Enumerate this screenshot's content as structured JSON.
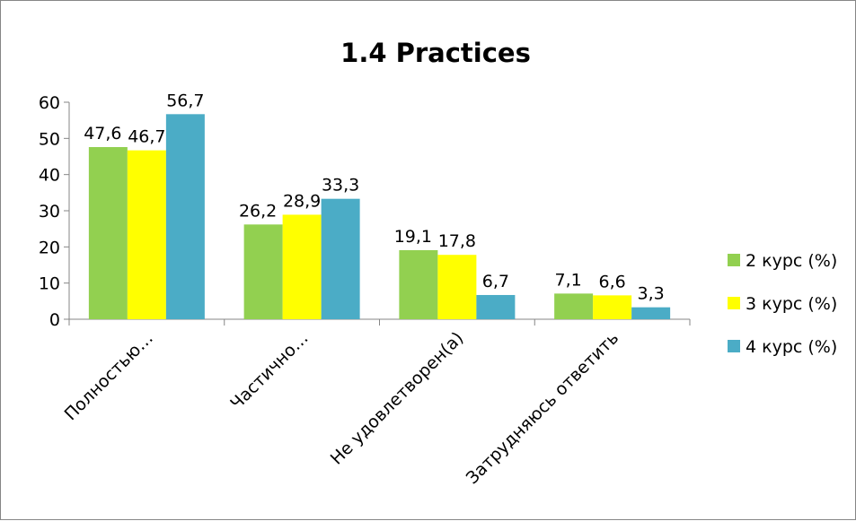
{
  "chart_data": {
    "type": "bar",
    "title": "1.4 Practices",
    "categories": [
      "Полностью…",
      "Частично…",
      "Не удовлетворен(а)",
      "Затрудняюсь ответить"
    ],
    "series": [
      {
        "name": "2 курс (%)",
        "values": [
          47.6,
          26.2,
          19.1,
          7.1
        ],
        "labels": [
          "47,6",
          "26,2",
          "19,1",
          "7,1"
        ],
        "color": "#92d050"
      },
      {
        "name": "3 курс (%)",
        "values": [
          46.7,
          28.9,
          17.8,
          6.6
        ],
        "labels": [
          "46,7",
          "28,9",
          "17,8",
          "6,6"
        ],
        "color": "#ffff00"
      },
      {
        "name": "4 курс (%)",
        "values": [
          56.7,
          33.3,
          6.7,
          3.3
        ],
        "labels": [
          "56,7",
          "33,3",
          "6,7",
          "3,3"
        ],
        "color": "#4bacc6"
      }
    ],
    "yticks": [
      "0",
      "10",
      "20",
      "30",
      "40",
      "50",
      "60"
    ],
    "ylim": [
      0,
      60
    ],
    "xlabel": "",
    "ylabel": "",
    "grid": false,
    "legend_position": "right"
  }
}
